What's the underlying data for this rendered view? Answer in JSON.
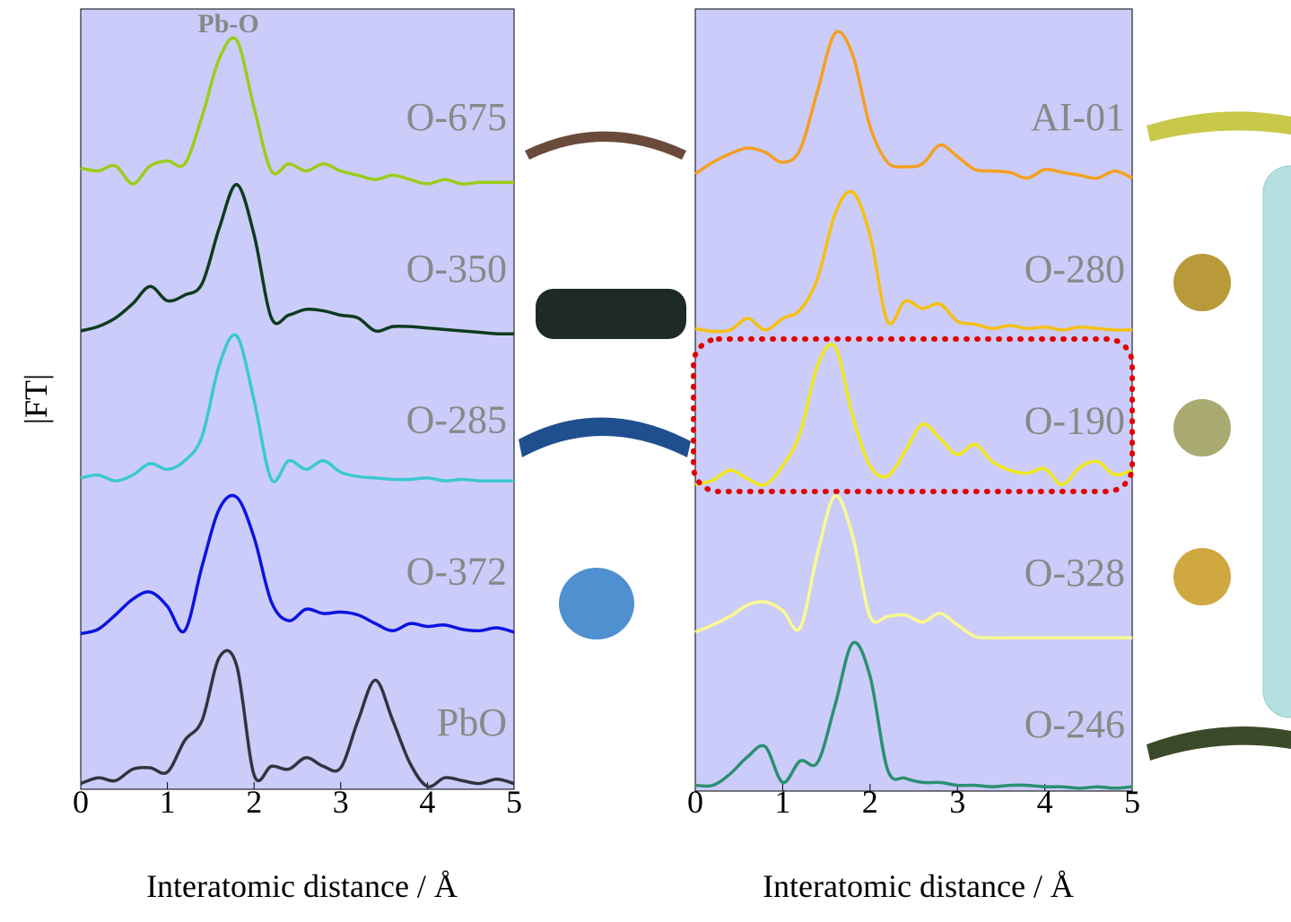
{
  "chart_data": [
    {
      "type": "line",
      "annotation": "Pb-O",
      "ylabel": "|FT|",
      "xlabel": "Interatomic distance / Å",
      "xlim": [
        0,
        5
      ],
      "xticks": [
        0,
        1,
        2,
        3,
        4,
        5
      ],
      "x": [
        0,
        0.2,
        0.4,
        0.6,
        0.8,
        1,
        1.2,
        1.4,
        1.6,
        1.8,
        2,
        2.2,
        2.4,
        2.6,
        2.8,
        3,
        3.2,
        3.4,
        3.6,
        3.8,
        4,
        4.2,
        4.4,
        4.6,
        4.8,
        5
      ],
      "series": [
        {
          "name": "O-675",
          "color": "#9acd1a",
          "values": [
            1.1,
            0.9,
            1.25,
            0,
            1.25,
            1.6,
            1.4,
            4.7,
            8.75,
            10,
            5.3,
            0.9,
            1.4,
            0.9,
            1.4,
            0.9,
            0.6,
            0.3,
            0.6,
            0.3,
            0,
            0.3,
            0,
            0.1,
            0.1,
            0.1
          ]
        },
        {
          "name": "O-350",
          "color": "#0d3b1e",
          "values": [
            0.3,
            0.6,
            1.2,
            2.2,
            3.4,
            2.4,
            2.8,
            3.6,
            7.5,
            10.5,
            7,
            1.2,
            1.4,
            1.8,
            1.7,
            1.4,
            1.2,
            0.3,
            0.6,
            0.6,
            0.5,
            0.4,
            0.3,
            0.2,
            0.1,
            0.1
          ]
        },
        {
          "name": "O-285",
          "color": "#3cc8d0",
          "values": [
            0.6,
            0.8,
            0.4,
            0.8,
            1.6,
            1.2,
            1.8,
            3.5,
            8.5,
            10.5,
            6,
            0.5,
            1.8,
            1.2,
            1.8,
            1,
            0.7,
            0.6,
            0.5,
            0.5,
            0.6,
            0.4,
            0.5,
            0.4,
            0.4,
            0.4
          ]
        },
        {
          "name": "O-372",
          "color": "#0a14e0",
          "values": [
            0.3,
            0.6,
            1.6,
            2.7,
            3.2,
            2.2,
            0.5,
            5,
            9,
            9.8,
            7,
            2.5,
            1.2,
            2,
            1.7,
            1.8,
            1.6,
            1,
            0.5,
            1,
            0.8,
            0.9,
            0.6,
            0.5,
            0.7,
            0.4
          ]
        },
        {
          "name": "PbO",
          "color": "#333340",
          "values": [
            0.4,
            0.8,
            0.6,
            1.4,
            1.5,
            1.2,
            3.4,
            4.8,
            9.2,
            8.6,
            1,
            1.6,
            1.4,
            2.2,
            1.6,
            1.5,
            4.8,
            7.6,
            4.8,
            1.8,
            0.2,
            0.8,
            0.6,
            0.4,
            0.7,
            0.4
          ]
        }
      ]
    },
    {
      "type": "line",
      "xlabel": "Interatomic distance / Å",
      "xlim": [
        0,
        5
      ],
      "xticks": [
        0,
        1,
        2,
        3,
        4,
        5
      ],
      "x": [
        0,
        0.2,
        0.4,
        0.6,
        0.8,
        1,
        1.2,
        1.4,
        1.6,
        1.8,
        2,
        2.2,
        2.4,
        2.6,
        2.8,
        3,
        3.2,
        3.4,
        3.6,
        3.8,
        4,
        4.2,
        4.4,
        4.6,
        4.8,
        5
      ],
      "series": [
        {
          "name": "AI-01",
          "color": "#f5a020",
          "values": [
            0.7,
            1.5,
            2.1,
            2.5,
            2.2,
            1.5,
            2.4,
            6.5,
            10.5,
            9,
            4,
            1.5,
            1.2,
            1.4,
            2.7,
            1.9,
            1,
            0.9,
            0.8,
            0.4,
            1,
            0.8,
            0.6,
            0.4,
            0.9,
            0.4
          ]
        },
        {
          "name": "O-280",
          "color": "#f5c010",
          "values": [
            0.5,
            0.3,
            0.4,
            1.2,
            0.4,
            1.2,
            1.8,
            4,
            8.5,
            10,
            7,
            1,
            2.4,
            1.9,
            2.2,
            1,
            0.8,
            0.5,
            0.7,
            0.5,
            0.6,
            0.4,
            0.6,
            0.5,
            0.4,
            0.4
          ]
        },
        {
          "name": "O-190",
          "color": "#f0e81a",
          "values": [
            0.2,
            0.5,
            1.2,
            0.6,
            0.2,
            1.5,
            3.8,
            8.5,
            9.8,
            5,
            1.5,
            0.8,
            2.5,
            4.4,
            3.4,
            2.3,
            3,
            1.8,
            1.2,
            1,
            1.3,
            0.2,
            1.4,
            1.8,
            0.9,
            1.2
          ]
        },
        {
          "name": "O-328",
          "color": "#fafa90",
          "values": [
            0.5,
            1,
            1.6,
            2.4,
            2.6,
            2,
            0.8,
            6,
            10,
            7.2,
            1.6,
            1.6,
            1.7,
            1.2,
            1.8,
            1,
            0.2,
            0.1,
            0.1,
            0.1,
            0.1,
            0.1,
            0.1,
            0.1,
            0.1,
            0.1
          ]
        },
        {
          "name": "O-246",
          "color": "#2a9070",
          "values": [
            0.4,
            0.4,
            1.2,
            2.4,
            3.1,
            0.6,
            2.1,
            2,
            6,
            10.3,
            8,
            1.5,
            0.9,
            0.6,
            0.6,
            0.4,
            0.4,
            0.3,
            0.4,
            0.4,
            0.3,
            0.3,
            0.2,
            0.3,
            0.2,
            0.3
          ]
        }
      ]
    }
  ]
}
